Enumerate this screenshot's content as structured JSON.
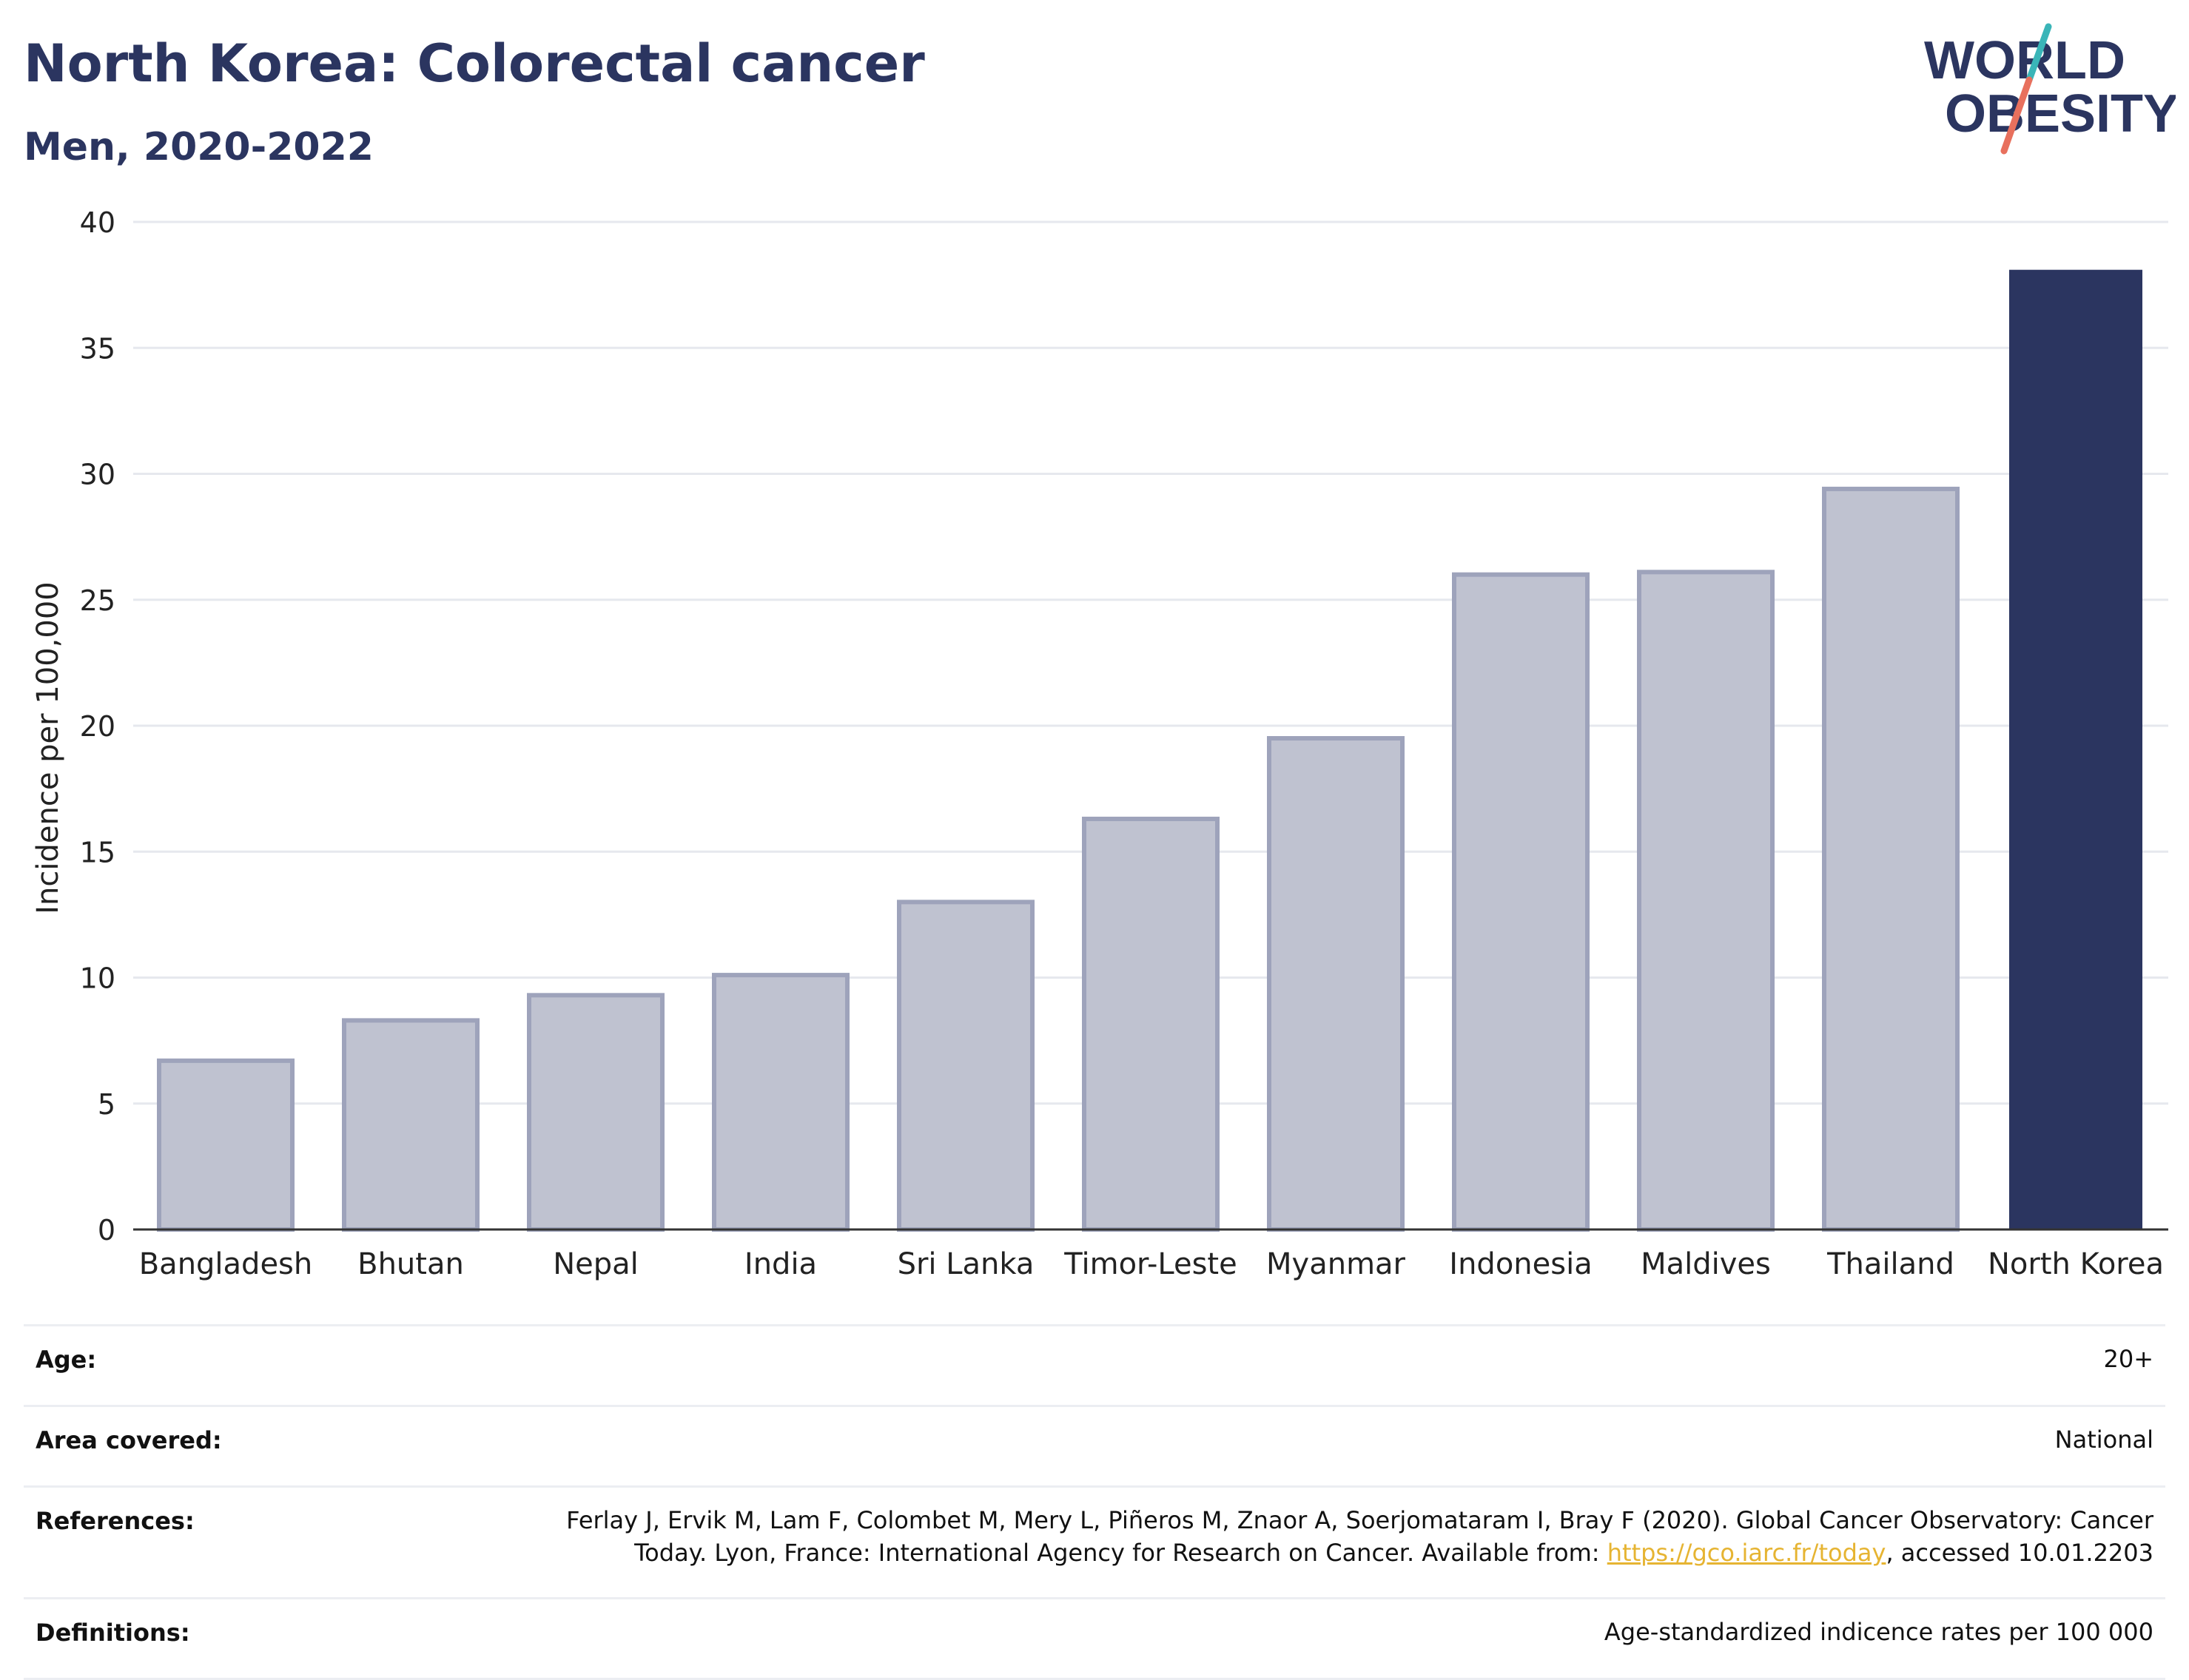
{
  "header": {
    "title": "North Korea: Colorectal cancer",
    "subtitle": "Men, 2020-2022"
  },
  "logo": {
    "line1": "WORLD",
    "line2": "OBESITY"
  },
  "colors": {
    "highlight_bar": "#2b3560",
    "other_bar_fill": "#bfc2d0",
    "other_bar_stroke": "#9ea3bb",
    "gridline": "#e6e8ee",
    "text": "#2b3560",
    "link": "#e6b432",
    "logo_teal": "#3ab5b8",
    "logo_coral": "#e8705d"
  },
  "chart_data": {
    "type": "bar",
    "title": "North Korea: Colorectal cancer",
    "subtitle": "Men, 2020-2022",
    "xlabel": "",
    "ylabel": "Incidence per 100,000",
    "ylim": [
      0,
      40
    ],
    "yticks": [
      0,
      5,
      10,
      15,
      20,
      25,
      30,
      35,
      40
    ],
    "grid": true,
    "legend": "none",
    "highlight": "North Korea",
    "categories": [
      "Bangladesh",
      "Bhutan",
      "Nepal",
      "India",
      "Sri Lanka",
      "Timor-Leste",
      "Myanmar",
      "Indonesia",
      "Maldives",
      "Thailand",
      "North Korea"
    ],
    "values": [
      6.7,
      8.3,
      9.3,
      10.1,
      13.0,
      16.3,
      19.5,
      26.0,
      26.1,
      29.4,
      38.1
    ]
  },
  "meta": {
    "age_label": "Age:",
    "age_value": "20+",
    "area_label": "Area covered:",
    "area_value": "National",
    "references_label": "References:",
    "references_line1": "Ferlay J, Ervik M, Lam F, Colombet M, Mery L, Piñeros M, Znaor A, Soerjomataram I, Bray F (2020). Global Cancer Observatory: Cancer",
    "references_line2_pre": "Today. Lyon, France: International Agency for Research on Cancer. Available from: ",
    "references_link": "https://gco.iarc.fr/today",
    "references_line2_post": ", accessed 10.01.2203",
    "definitions_label": "Definitions:",
    "definitions_value": "Age-standardized indicence rates per 100 000"
  }
}
